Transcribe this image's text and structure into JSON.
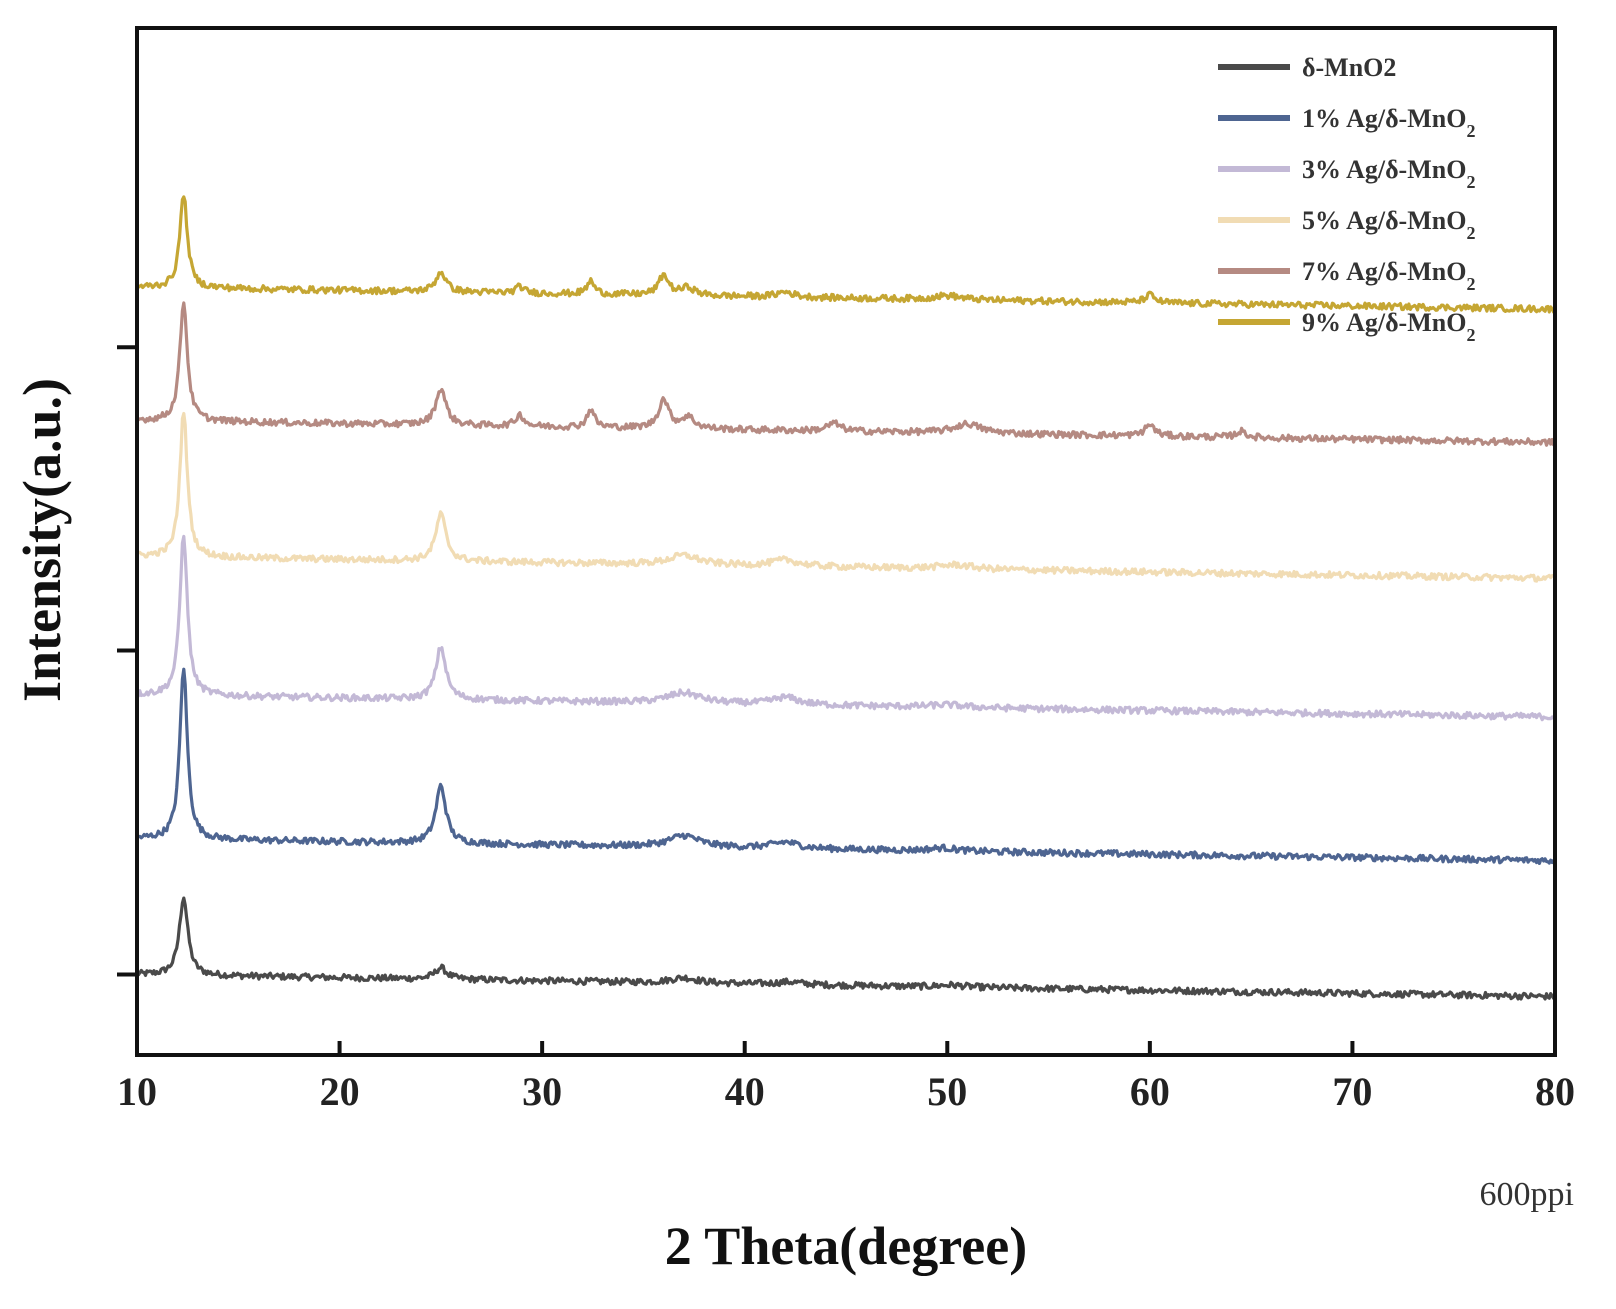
{
  "chart_data": {
    "type": "line",
    "title": "",
    "xlabel": "2 Theta(degree)",
    "ylabel": "Intensity(a.u.)",
    "xlim": [
      10,
      80
    ],
    "xticks": [
      10,
      20,
      30,
      40,
      50,
      60,
      70,
      80
    ],
    "yticks_labeled": false,
    "grid": false,
    "legend_position": "top-right",
    "annotation": "600ppi",
    "series": [
      {
        "name": "δ-MnO2",
        "name_html": "δ-MnO2",
        "color": "#4a4a4a",
        "baseline": 0.0,
        "peaks": [
          [
            12.3,
            0.15,
            0.25
          ],
          [
            25.0,
            0.022,
            0.35
          ],
          [
            37.0,
            0.01,
            0.8
          ],
          [
            42.2,
            0.005,
            0.8
          ],
          [
            50.2,
            0.004,
            0.8
          ]
        ]
      },
      {
        "name": "1% Ag/δ-MnO2",
        "name_html": "1% Ag/δ-MnO<tspan baseline-shift='sub' font-size='18'>2</tspan>",
        "color": "#4e6591",
        "baseline": 0.26,
        "peaks": [
          [
            12.3,
            0.33,
            0.22
          ],
          [
            25.0,
            0.11,
            0.3
          ],
          [
            37.0,
            0.022,
            0.9
          ],
          [
            42.0,
            0.012,
            0.8
          ],
          [
            49.8,
            0.006,
            0.8
          ]
        ]
      },
      {
        "name": "3% Ag/δ-MnO2",
        "name_html": "3% Ag/δ-MnO<tspan baseline-shift='sub' font-size='18'>2</tspan>",
        "color": "#c3b9d6",
        "baseline": 0.535,
        "peaks": [
          [
            12.3,
            0.31,
            0.22
          ],
          [
            25.0,
            0.1,
            0.3
          ],
          [
            37.0,
            0.02,
            1.0
          ],
          [
            42.0,
            0.014,
            0.8
          ],
          [
            50.0,
            0.005,
            1.0
          ]
        ]
      },
      {
        "name": "5% Ag/δ-MnO2",
        "name_html": "5% Ag/δ-MnO<tspan baseline-shift='sub' font-size='18'>2</tspan>",
        "color": "#f1dcb4",
        "baseline": 0.8,
        "peaks": [
          [
            12.3,
            0.28,
            0.22
          ],
          [
            25.0,
            0.09,
            0.3
          ],
          [
            37.0,
            0.018,
            0.9
          ],
          [
            42.0,
            0.012,
            0.8
          ],
          [
            50.4,
            0.008,
            1.0
          ]
        ]
      },
      {
        "name": "7% Ag/δ-MnO2",
        "name_html": "7% Ag/δ-MnO<tspan baseline-shift='sub' font-size='18'>2</tspan>",
        "color": "#b58a82",
        "baseline": 1.06,
        "peaks": [
          [
            12.3,
            0.23,
            0.22
          ],
          [
            25.0,
            0.07,
            0.3
          ],
          [
            28.9,
            0.022,
            0.25
          ],
          [
            32.4,
            0.035,
            0.22
          ],
          [
            36.0,
            0.055,
            0.3
          ],
          [
            37.2,
            0.022,
            0.4
          ],
          [
            44.4,
            0.015,
            0.4
          ],
          [
            51.0,
            0.018,
            0.8
          ],
          [
            60.0,
            0.022,
            0.3
          ],
          [
            64.5,
            0.012,
            0.3
          ]
        ]
      },
      {
        "name": "9% Ag/δ-MnO2",
        "name_html": "9% Ag/δ-MnO<tspan baseline-shift='sub' font-size='18'>2</tspan>",
        "color": "#c5a633",
        "baseline": 1.315,
        "peaks": [
          [
            12.3,
            0.18,
            0.22
          ],
          [
            25.0,
            0.038,
            0.3
          ],
          [
            28.9,
            0.012,
            0.25
          ],
          [
            32.4,
            0.025,
            0.22
          ],
          [
            36.0,
            0.038,
            0.3
          ],
          [
            37.2,
            0.015,
            0.4
          ],
          [
            42.0,
            0.01,
            0.5
          ],
          [
            50.0,
            0.008,
            0.8
          ],
          [
            60.0,
            0.015,
            0.3
          ]
        ]
      }
    ]
  }
}
